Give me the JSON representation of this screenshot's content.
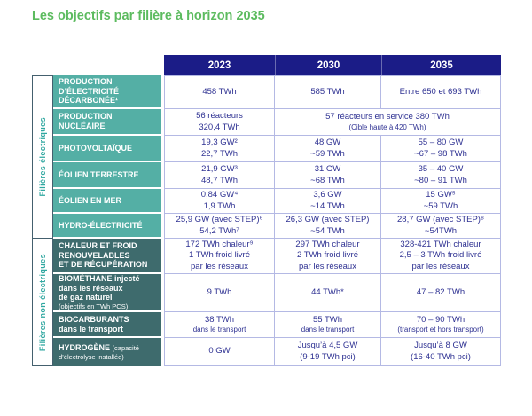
{
  "title": "Les objectifs par filière à horizon 2035",
  "colors": {
    "title-green": "#5CBB5F",
    "header-navy": "#1B1C87",
    "electric-teal": "#54AFA5",
    "non-electric-slate": "#3E6B6D",
    "value-blue": "#2E3192",
    "grid-line": "#B4B9E4",
    "sidebar-teal": "#2FA7A0",
    "sidebar-border": "#44606E"
  },
  "table": {
    "year_headers": [
      "2023",
      "2030",
      "2035"
    ],
    "groups": [
      {
        "label": "Filières électriques"
      },
      {
        "label": "Filières non électriques"
      }
    ],
    "rows": [
      {
        "id": "production-electricite-decarbonee",
        "header": {
          "title": "PRODUCTION\nD’ÉLECTRICITÉ\nDÉCARBONÉE¹"
        },
        "cells": [
          {
            "text": "458 TWh"
          },
          {
            "text": "585 TWh"
          },
          {
            "text": "Entre 650 et 693 TWh"
          }
        ]
      },
      {
        "id": "production-nucleaire",
        "header": {
          "title": "PRODUCTION\nNUCLÉAIRE"
        },
        "cells": [
          {
            "text": "56 réacteurs\n320,4 TWh"
          },
          {
            "text": "57 réacteurs en service 380 TWh",
            "note": "(Cible haute à 420 TWh)"
          }
        ]
      },
      {
        "id": "photovoltaique",
        "header": {
          "title": "PHOTOVOLTAÏQUE"
        },
        "cells": [
          {
            "text": "19,3 GW²\n22,7 TWh"
          },
          {
            "text": "48 GW\n~59 TWh"
          },
          {
            "text": "55 – 80 GW\n~67 – 98 TWh"
          }
        ]
      },
      {
        "id": "eolien-terrestre",
        "header": {
          "title": "ÉOLIEN TERRESTRE"
        },
        "cells": [
          {
            "text": "21,9 GW³\n48,7 TWh"
          },
          {
            "text": "31 GW\n~68 TWh"
          },
          {
            "text": "35 – 40 GW\n~80 – 91 TWh"
          }
        ]
      },
      {
        "id": "eolien-en-mer",
        "header": {
          "title": "ÉOLIEN EN MER"
        },
        "cells": [
          {
            "text": "0,84 GW⁴\n1,9 TWh"
          },
          {
            "text": "3,6 GW\n~14 TWh"
          },
          {
            "text": "15 GW⁵\n~59 TWh"
          }
        ]
      },
      {
        "id": "hydro-electricite",
        "header": {
          "title": "HYDRO-ÉLECTRICITÉ"
        },
        "cells": [
          {
            "text": "25,9 GW (avec STEP)⁶\n54,2 TWh⁷"
          },
          {
            "text": "26,3 GW (avec STEP)\n~54 TWh"
          },
          {
            "text": "28,7 GW (avec STEP)⁸\n~54TWh"
          }
        ]
      },
      {
        "id": "chaleur-et-froid",
        "header": {
          "title": "CHALEUR ET FROID\nRENOUVELABLES\nET DE RÉCUPÉRATION"
        },
        "cells": [
          {
            "text": "172 TWh chaleur⁹\n1 TWh froid livré\npar les réseaux"
          },
          {
            "text": "297 TWh chaleur\n2 TWh froid livré\npar les réseaux"
          },
          {
            "text": "328-421 TWh chaleur\n2,5 – 3 TWh froid livré\npar les réseaux"
          }
        ]
      },
      {
        "id": "biomethane",
        "header": {
          "title": "BIOMÉTHANE injecté\ndans les réseaux\nde gaz naturel",
          "note": "(objectifs en TWh PCS)"
        },
        "cells": [
          {
            "text": "9 TWh"
          },
          {
            "text": "44 TWh*"
          },
          {
            "text": "47 – 82 TWh"
          }
        ]
      },
      {
        "id": "biocarburants",
        "header": {
          "title": "BIOCARBURANTS\ndans le transport"
        },
        "cells": [
          {
            "text": "38 TWh",
            "note": "dans le transport"
          },
          {
            "text": "55 TWh",
            "note": "dans le transport"
          },
          {
            "text": "70 – 90 TWh",
            "note": "(transport et hors transport)"
          }
        ]
      },
      {
        "id": "hydrogene",
        "header": {
          "title": "HYDROGÈNE",
          "note": "(capacité d’électrolyse installée)"
        },
        "cells": [
          {
            "text": "0 GW"
          },
          {
            "text": "Jusqu’à 4,5 GW\n(9-19 TWh pci)"
          },
          {
            "text": "Jusqu’à 8 GW\n(16-40 TWh pci)"
          }
        ]
      }
    ]
  }
}
